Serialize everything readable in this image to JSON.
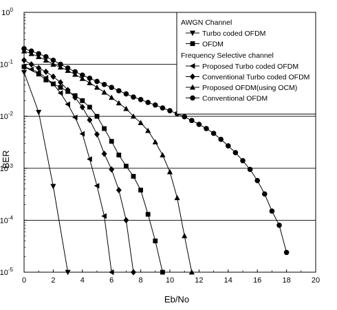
{
  "chart_data": {
    "type": "line",
    "title": "",
    "xlabel": "Eb/No",
    "ylabel": "BER",
    "xlim": [
      0,
      20
    ],
    "ylim": [
      1e-05,
      1
    ],
    "yscale": "log",
    "grid": "horizontal",
    "legend_placement": "top-right",
    "x_ticks": [
      "0",
      "2",
      "4",
      "6",
      "8",
      "10",
      "12",
      "14",
      "16",
      "18",
      "20"
    ],
    "y_ticks": [
      {
        "base": "10",
        "exp": "0"
      },
      {
        "base": "10",
        "exp": "-1"
      },
      {
        "base": "10",
        "exp": "-2"
      },
      {
        "base": "10",
        "exp": "-3"
      },
      {
        "base": "10",
        "exp": "-4"
      },
      {
        "base": "10",
        "exp": "-5"
      }
    ],
    "legend_groups": [
      "AWGN Channel",
      "Frequency Selective channel"
    ],
    "series": [
      {
        "name": "Turbo coded OFDM",
        "group": 0,
        "marker": "triangle-down",
        "x": [
          0,
          1,
          2,
          3
        ],
        "y": [
          0.07,
          0.012,
          0.00045,
          1e-05
        ]
      },
      {
        "name": "OFDM",
        "group": 0,
        "marker": "square",
        "x": [
          0,
          1,
          1.5,
          2,
          2.5,
          3,
          3.5,
          4,
          4.5,
          5,
          5.5,
          6,
          6.5,
          7,
          7.5,
          8,
          8.5,
          9,
          9.5
        ],
        "y": [
          0.09,
          0.065,
          0.05,
          0.042,
          0.036,
          0.03,
          0.025,
          0.02,
          0.015,
          0.01,
          0.0058,
          0.0033,
          0.0018,
          0.0011,
          0.0007,
          0.00038,
          0.00013,
          4e-05,
          1e-05
        ]
      },
      {
        "name": "Proposed Turbo coded OFDM",
        "group": 1,
        "marker": "triangle-left",
        "x": [
          0,
          0.5,
          1,
          1.5,
          2,
          2.5,
          3,
          3.5,
          4,
          4.5,
          5,
          5.5,
          6
        ],
        "y": [
          0.09,
          0.08,
          0.07,
          0.055,
          0.042,
          0.028,
          0.017,
          0.0095,
          0.0046,
          0.0015,
          0.00046,
          0.00012,
          1e-05
        ]
      },
      {
        "name": "Conventional Turbo coded OFDM",
        "group": 1,
        "marker": "diamond",
        "x": [
          0,
          0.5,
          1,
          1.5,
          2,
          2.5,
          3,
          3.5,
          4,
          4.5,
          5,
          5.5,
          6,
          6.5,
          7,
          7.5
        ],
        "y": [
          0.12,
          0.1,
          0.085,
          0.072,
          0.058,
          0.045,
          0.032,
          0.023,
          0.015,
          0.0085,
          0.0045,
          0.0019,
          0.00095,
          0.00038,
          0.0001,
          1e-05
        ]
      },
      {
        "name": "Proposed OFDM(using OCM)",
        "group": 1,
        "marker": "triangle-up",
        "x": [
          0,
          0.5,
          1,
          1.5,
          2,
          2.5,
          3,
          3.5,
          4,
          4.5,
          5,
          5.5,
          6,
          6.5,
          7,
          7.5,
          8,
          8.5,
          9,
          9.5,
          10,
          10.5,
          11,
          11.5
        ],
        "y": [
          0.18,
          0.16,
          0.14,
          0.12,
          0.1,
          0.088,
          0.076,
          0.064,
          0.053,
          0.044,
          0.036,
          0.029,
          0.023,
          0.018,
          0.014,
          0.01,
          0.0075,
          0.0053,
          0.0032,
          0.0018,
          0.00085,
          0.00027,
          5e-05,
          1e-05
        ]
      },
      {
        "name": "Conventional OFDM",
        "group": 1,
        "marker": "circle",
        "x": [
          0,
          0.5,
          1,
          1.5,
          2,
          2.5,
          3,
          3.5,
          4,
          4.5,
          5,
          5.5,
          6,
          6.5,
          7,
          7.5,
          8,
          8.5,
          9,
          9.5,
          10,
          10.5,
          11,
          11.5,
          12,
          12.5,
          13,
          13.5,
          14,
          14.5,
          15,
          15.5,
          16,
          16.5,
          17,
          17.5,
          18
        ],
        "y": [
          0.2,
          0.18,
          0.16,
          0.14,
          0.12,
          0.1,
          0.085,
          0.072,
          0.062,
          0.054,
          0.047,
          0.041,
          0.036,
          0.031,
          0.027,
          0.0235,
          0.021,
          0.0185,
          0.0165,
          0.0145,
          0.0128,
          0.0112,
          0.0098,
          0.0083,
          0.007,
          0.0058,
          0.0047,
          0.0036,
          0.0027,
          0.002,
          0.0014,
          0.00095,
          0.00058,
          0.00032,
          0.00015,
          8e-05,
          2.4e-05
        ]
      }
    ]
  }
}
